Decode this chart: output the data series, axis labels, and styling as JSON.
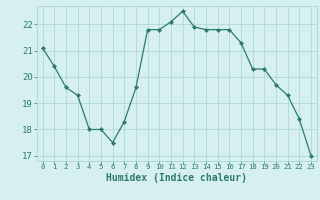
{
  "x": [
    0,
    1,
    2,
    3,
    4,
    5,
    6,
    7,
    8,
    9,
    10,
    11,
    12,
    13,
    14,
    15,
    16,
    17,
    18,
    19,
    20,
    21,
    22,
    23
  ],
  "y": [
    21.1,
    20.4,
    19.6,
    19.3,
    18.0,
    18.0,
    17.5,
    18.3,
    19.6,
    21.8,
    21.8,
    22.1,
    22.5,
    21.9,
    21.8,
    21.8,
    21.8,
    21.3,
    20.3,
    20.3,
    19.7,
    19.3,
    18.4,
    17.0
  ],
  "xlabel": "Humidex (Indice chaleur)",
  "ylim_min": 16.8,
  "ylim_max": 22.7,
  "yticks": [
    17,
    18,
    19,
    20,
    21,
    22
  ],
  "xticks": [
    0,
    1,
    2,
    3,
    4,
    5,
    6,
    7,
    8,
    9,
    10,
    11,
    12,
    13,
    14,
    15,
    16,
    17,
    18,
    19,
    20,
    21,
    22,
    23
  ],
  "line_color": "#2d7a72",
  "marker": "D",
  "marker_size": 2.0,
  "bg_color": "#d6f0f0",
  "grid_color": "#afd8d8",
  "tick_color": "#2d7a72",
  "label_color": "#2d7a72"
}
